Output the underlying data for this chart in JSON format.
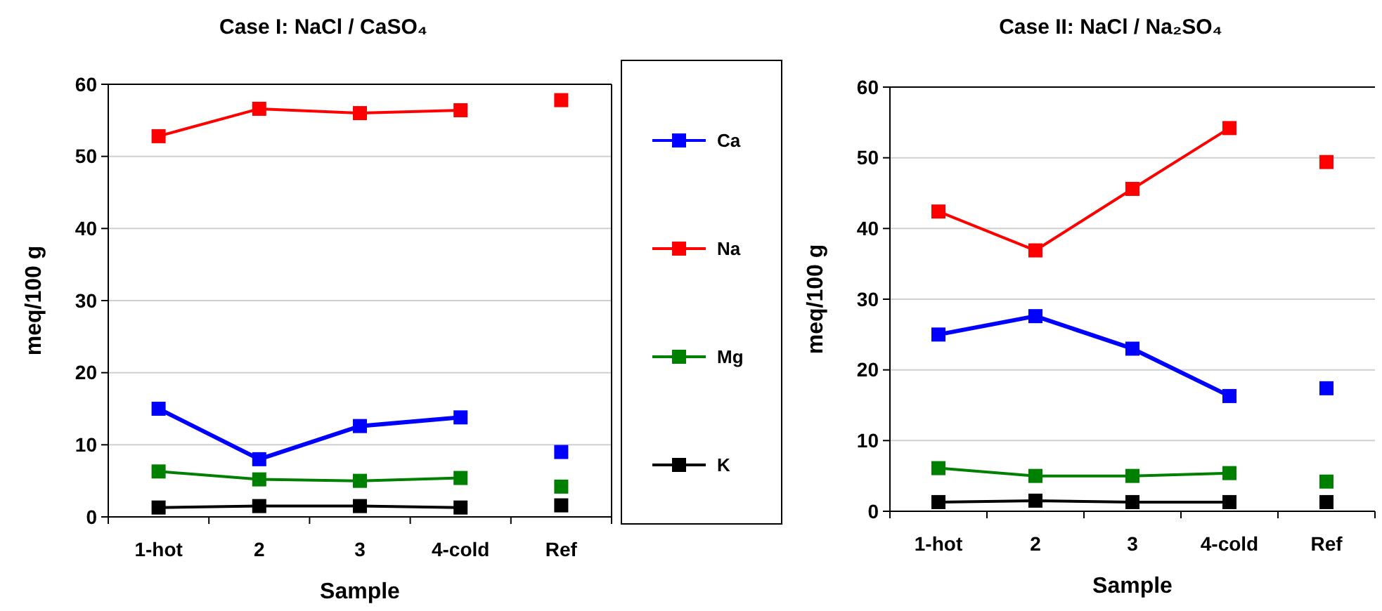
{
  "chart_data": [
    {
      "type": "line",
      "title": "Case I: NaCl / CaSO₄",
      "xlabel": "Sample",
      "ylabel": "meq/100 g",
      "categories": [
        "1-hot",
        "2",
        "3",
        "4-cold",
        "Ref"
      ],
      "ylim": [
        0,
        60
      ],
      "yticks": [
        0,
        10,
        20,
        30,
        40,
        50,
        60
      ],
      "grid": "y",
      "legend": "right",
      "marker": "square",
      "line_style": "solid",
      "series": [
        {
          "name": "Ca",
          "color": "#0000ff",
          "values": [
            15,
            8,
            12.6,
            13.8,
            null
          ]
        },
        {
          "name": "Na",
          "color": "#ff0000",
          "values": [
            52.8,
            56.6,
            56,
            56.4,
            null
          ]
        },
        {
          "name": "Mg",
          "color": "#008000",
          "values": [
            6.3,
            5.2,
            5,
            5.4,
            null
          ]
        },
        {
          "name": "K",
          "color": "#000000",
          "values": [
            1.3,
            1.5,
            1.5,
            1.3,
            null
          ]
        },
        {
          "type": "scatter",
          "color": "#0000ff",
          "x": [
            "Ref"
          ],
          "values": [
            9
          ]
        },
        {
          "type": "scatter",
          "color": "#ff0000",
          "x": [
            "Ref"
          ],
          "values": [
            57.8
          ]
        },
        {
          "type": "scatter",
          "color": "#008000",
          "x": [
            "Ref"
          ],
          "values": [
            4.2
          ]
        },
        {
          "type": "scatter",
          "color": "#000000",
          "x": [
            "Ref"
          ],
          "values": [
            1.6
          ]
        }
      ]
    },
    {
      "type": "line",
      "title": "Case II: NaCl / Na₂SO₄",
      "xlabel": "Sample",
      "ylabel": "meq/100 g",
      "categories": [
        "1-hot",
        "2",
        "3",
        "4-cold",
        "Ref"
      ],
      "ylim": [
        0,
        60
      ],
      "yticks": [
        0,
        10,
        20,
        30,
        40,
        50,
        60
      ],
      "grid": "y",
      "marker": "square",
      "line_style": "solid",
      "series": [
        {
          "color": "#0000ff",
          "values": [
            25,
            27.6,
            23,
            16.3,
            null
          ]
        },
        {
          "color": "#ff0000",
          "values": [
            42.4,
            36.9,
            45.6,
            54.2,
            null
          ]
        },
        {
          "color": "#008000",
          "values": [
            6.1,
            5,
            5,
            5.4,
            null
          ]
        },
        {
          "color": "#000000",
          "values": [
            1.3,
            1.5,
            1.3,
            1.3,
            null
          ]
        },
        {
          "type": "scatter",
          "color": "#0000ff",
          "x": [
            "Ref"
          ],
          "values": [
            17.4
          ]
        },
        {
          "type": "scatter",
          "color": "#ff0000",
          "x": [
            "Ref"
          ],
          "values": [
            49.4
          ]
        },
        {
          "type": "scatter",
          "color": "#008000",
          "x": [
            "Ref"
          ],
          "values": [
            4.2
          ]
        },
        {
          "type": "scatter",
          "color": "#000000",
          "x": [
            "Ref"
          ],
          "values": [
            1.3
          ]
        }
      ]
    }
  ]
}
